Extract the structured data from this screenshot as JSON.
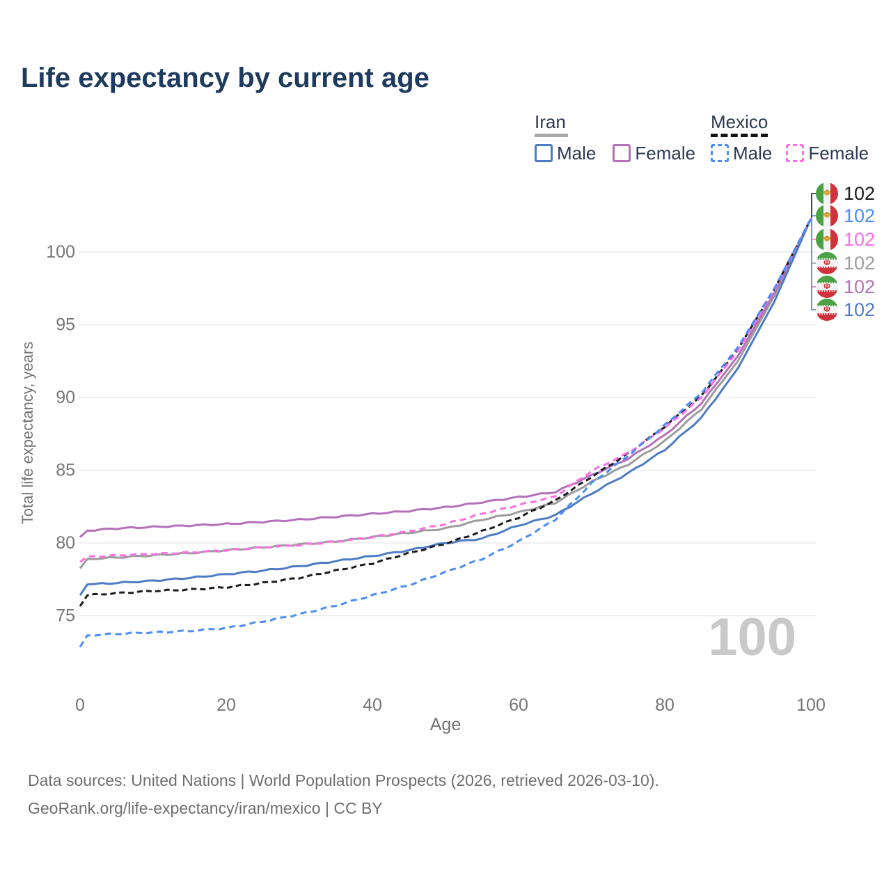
{
  "title": "Life expectancy by current age",
  "legend": {
    "groups": [
      {
        "label": "Iran",
        "line_style": "solid",
        "underline_color": "#a8a8a8",
        "items": [
          {
            "label": "Male",
            "color": "#4d7cc4"
          },
          {
            "label": "Female",
            "color": "#b470b8"
          }
        ]
      },
      {
        "label": "Mexico",
        "line_style": "dashed",
        "underline_color": "#141414",
        "items": [
          {
            "label": "Male",
            "color": "#4a8df5"
          },
          {
            "label": "Female",
            "color": "#fb6ee4"
          }
        ]
      }
    ]
  },
  "end_labels": [
    {
      "flag": "mexico-flag-icon",
      "series": "Mexico",
      "value": "102",
      "color": "#1c1c1c"
    },
    {
      "flag": "mexico-flag-icon",
      "series": "Mexico Male",
      "value": "102",
      "color": "#4a8df5"
    },
    {
      "flag": "mexico-flag-icon",
      "series": "Mexico Female",
      "value": "102",
      "color": "#fb6ee4"
    },
    {
      "flag": "iran-flag-icon",
      "series": "Iran",
      "value": "102",
      "color": "#9e9e9e"
    },
    {
      "flag": "iran-flag-icon",
      "series": "Iran Female",
      "value": "102",
      "color": "#b470b8"
    },
    {
      "flag": "iran-flag-icon",
      "series": "Iran Male",
      "value": "102",
      "color": "#4d7cc4"
    }
  ],
  "watermark": "100",
  "footer": {
    "line1": "Data sources: United Nations | World Population Prospects (2026, retrieved 2026-03-10).",
    "line2": "GeoRank.org/life-expectancy/iran/mexico | CC BY"
  },
  "chart_data": {
    "type": "line",
    "title": "Life expectancy by current age",
    "xlabel": "Age",
    "ylabel": "Total life expectancy, years",
    "xlim": [
      0,
      100
    ],
    "ylim": [
      72.5,
      102.5
    ],
    "x_ticks": [
      0,
      20,
      40,
      60,
      80,
      100
    ],
    "y_ticks": [
      75,
      80,
      85,
      90,
      95,
      100
    ],
    "grid": "horizontal",
    "legend_position": "top-right",
    "x": [
      0,
      1,
      5,
      10,
      15,
      20,
      25,
      30,
      35,
      40,
      45,
      50,
      55,
      60,
      65,
      70,
      75,
      80,
      85,
      90,
      95,
      100
    ],
    "series": [
      {
        "name": "Iran",
        "country": "Iran",
        "sex": "Both",
        "color": "#9c9c9c",
        "dash": "solid",
        "values": [
          78.25,
          78.9,
          79.0,
          79.15,
          79.3,
          79.5,
          79.7,
          79.9,
          80.1,
          80.4,
          80.7,
          81.0,
          81.6,
          82.1,
          82.75,
          84.2,
          85.4,
          87.0,
          89.2,
          92.5,
          97.0,
          102.3
        ]
      },
      {
        "name": "Iran Female",
        "country": "Iran",
        "sex": "Female",
        "color": "#b470b8",
        "dash": "solid",
        "values": [
          80.4,
          80.85,
          81.0,
          81.1,
          81.2,
          81.3,
          81.45,
          81.6,
          81.8,
          82.0,
          82.2,
          82.45,
          82.8,
          83.15,
          83.5,
          84.65,
          85.8,
          87.4,
          89.6,
          92.85,
          97.2,
          102.3
        ]
      },
      {
        "name": "Iran Male",
        "country": "Iran",
        "sex": "Male",
        "color": "#4d7cc4",
        "dash": "solid",
        "values": [
          76.4,
          77.15,
          77.25,
          77.4,
          77.6,
          77.85,
          78.1,
          78.4,
          78.75,
          79.1,
          79.5,
          80.0,
          80.3,
          81.2,
          81.9,
          83.4,
          84.8,
          86.4,
          88.6,
          92.0,
          96.6,
          102.3
        ]
      },
      {
        "name": "Mexico",
        "country": "Mexico",
        "sex": "Both",
        "color": "#1c1c1c",
        "dash": "dashed",
        "values": [
          75.65,
          76.4,
          76.55,
          76.7,
          76.8,
          76.95,
          77.25,
          77.6,
          78.1,
          78.6,
          79.3,
          79.95,
          80.8,
          81.75,
          82.9,
          84.55,
          86.15,
          88.0,
          90.1,
          93.3,
          97.45,
          102.3
        ]
      },
      {
        "name": "Mexico Female",
        "country": "Mexico",
        "sex": "Female",
        "color": "#fb6ee4",
        "dash": "dashed",
        "values": [
          78.7,
          79.05,
          79.15,
          79.25,
          79.35,
          79.5,
          79.7,
          79.85,
          80.1,
          80.4,
          80.8,
          81.3,
          82.0,
          82.6,
          83.2,
          84.95,
          86.2,
          87.9,
          90.0,
          93.2,
          97.4,
          102.3
        ]
      },
      {
        "name": "Mexico Male",
        "country": "Mexico",
        "sex": "Male",
        "color": "#4a8df5",
        "dash": "dashed",
        "values": [
          72.85,
          73.65,
          73.75,
          73.85,
          73.95,
          74.15,
          74.6,
          75.1,
          75.7,
          76.4,
          77.1,
          78.0,
          78.9,
          80.1,
          81.6,
          84.1,
          86.0,
          88.1,
          90.3,
          93.45,
          97.5,
          102.3
        ]
      }
    ],
    "end_value_label": "102"
  }
}
